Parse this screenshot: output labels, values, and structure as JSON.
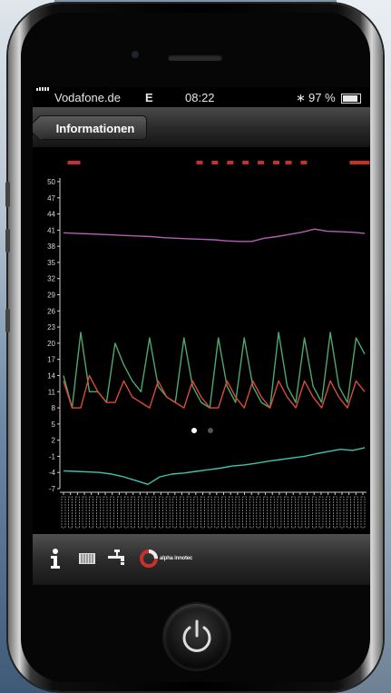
{
  "status": {
    "carrier": "Vodafone.de",
    "network": "E",
    "time": "08:22",
    "battery": "97 %"
  },
  "nav": {
    "back_label": "Informationen"
  },
  "chart_data": {
    "type": "line",
    "yticks": [
      "50",
      "47",
      "44",
      "41",
      "38",
      "35",
      "32",
      "29",
      "26",
      "23",
      "20",
      "17",
      "14",
      "11",
      "8",
      "5",
      "2",
      "-1",
      "-4",
      "-7"
    ],
    "ylim": [
      -7,
      50
    ],
    "xlabel": "",
    "ylabel": "",
    "title": "",
    "x_ticks_count": 44,
    "series": [
      {
        "color": "#b25fb1",
        "values": [
          40.5,
          40.4,
          40.3,
          40.2,
          40.1,
          40.0,
          39.9,
          39.8,
          39.6,
          39.5,
          39.4,
          39.3,
          39.2,
          39.0,
          38.9,
          38.9,
          39.5,
          39.8,
          40.2,
          40.6,
          41.2,
          40.8,
          40.7,
          40.6,
          40.4
        ]
      },
      {
        "color": "#4fa86a",
        "values": [
          14,
          8,
          22,
          11,
          11,
          9,
          20,
          16,
          13,
          11,
          21,
          12,
          10,
          9,
          21,
          12,
          9,
          8,
          21,
          12,
          9,
          21,
          12,
          9,
          8,
          22,
          12,
          9,
          21,
          12,
          9,
          22,
          12,
          9,
          21,
          18
        ]
      },
      {
        "color": "#d84b3a",
        "values": [
          13,
          8,
          8,
          14,
          11,
          9,
          9,
          13,
          10,
          9,
          8,
          13,
          10,
          9,
          8,
          13,
          10,
          8,
          8,
          13,
          10,
          8,
          13,
          10,
          8,
          13,
          10,
          8,
          13,
          10,
          8,
          13,
          10,
          8,
          13,
          11
        ]
      },
      {
        "color": "#3ec1b0",
        "values": [
          -3.7,
          -3.8,
          -3.9,
          -4.0,
          -4.3,
          -4.8,
          -5.5,
          -6.2,
          -4.8,
          -4.3,
          -4.1,
          -3.8,
          -3.5,
          -3.2,
          -2.8,
          -2.6,
          -2.3,
          -1.9,
          -1.6,
          -1.3,
          -1.0,
          -0.5,
          -0.1,
          0.3,
          0.1,
          0.6
        ]
      }
    ],
    "event_marks": [
      0.04,
      0.46,
      0.51,
      0.56,
      0.61,
      0.66,
      0.71,
      0.75,
      0.8,
      0.96
    ],
    "page_dots": 2,
    "page_current": 0
  },
  "toolbar": {
    "items": [
      {
        "icon": "info-icon"
      },
      {
        "icon": "heater-icon"
      },
      {
        "icon": "water-tap-icon"
      },
      {
        "icon": "brand-logo-icon",
        "text": "alpha innotec"
      }
    ]
  },
  "colors": {
    "event_red": "#c8302a",
    "axis": "#cfcfcf"
  }
}
